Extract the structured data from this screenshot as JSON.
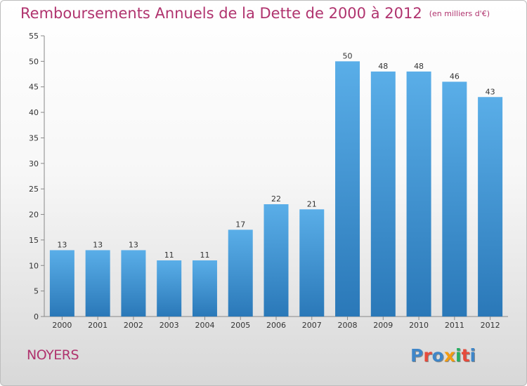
{
  "header": {
    "title": "Remboursements Annuels de la Dette de 2000 à 2012",
    "unit": "(en milliers d'€)"
  },
  "footer": {
    "place": "NOYERS",
    "logo_letters": [
      {
        "char": "P",
        "color": "#3f86c8"
      },
      {
        "char": "r",
        "color": "#e64b3c"
      },
      {
        "char": "o",
        "color": "#3f86c8"
      },
      {
        "char": "x",
        "color": "#f39c12"
      },
      {
        "char": "i",
        "color": "#27ae60"
      },
      {
        "char": "t",
        "color": "#e64b3c"
      },
      {
        "char": "i",
        "color": "#3f86c8"
      }
    ]
  },
  "chart_data": {
    "type": "bar",
    "title": "Remboursements Annuels de la Dette de 2000 à 2012",
    "subtitle": "(en milliers d'€)",
    "categories": [
      "2000",
      "2001",
      "2002",
      "2003",
      "2004",
      "2005",
      "2006",
      "2007",
      "2008",
      "2009",
      "2010",
      "2011",
      "2012"
    ],
    "values": [
      13,
      13,
      13,
      11,
      11,
      17,
      22,
      21,
      50,
      48,
      48,
      46,
      43
    ],
    "ylim": [
      0,
      55
    ],
    "yticks": [
      0,
      5,
      10,
      15,
      20,
      25,
      30,
      35,
      40,
      45,
      50,
      55
    ],
    "grid": false,
    "bar_color_top": "#5aaee8",
    "bar_color_bottom": "#2a78b8",
    "axis_color": "#888888"
  }
}
